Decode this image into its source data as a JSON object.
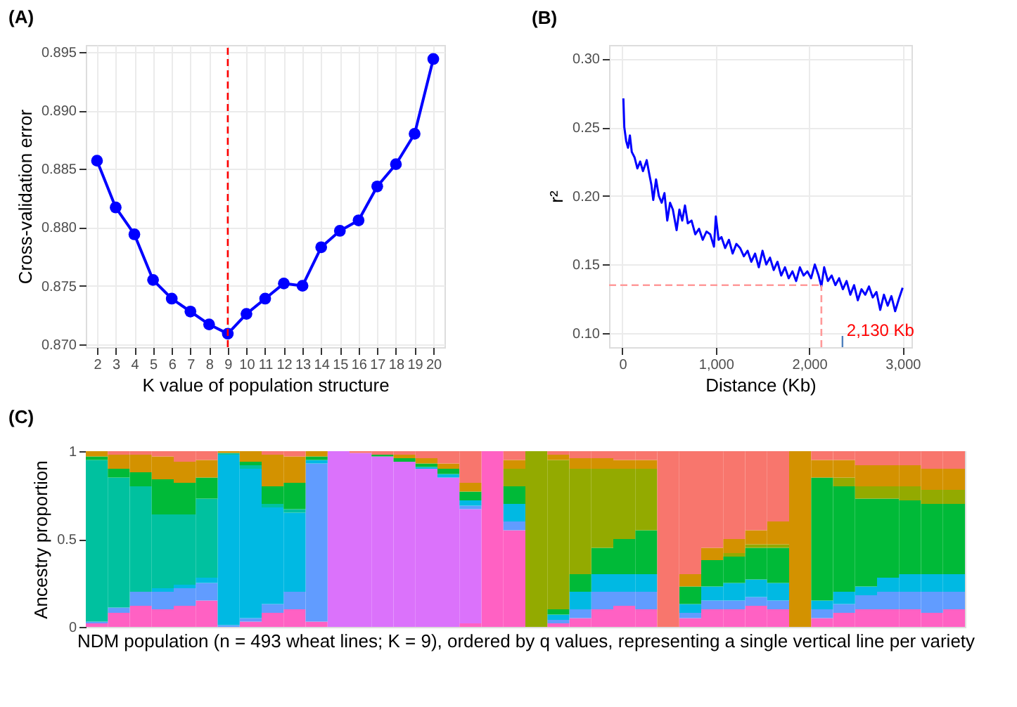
{
  "chart_data": [
    {
      "type": "line",
      "title": "(A)",
      "xlabel": "K value of population structure",
      "ylabel": "Cross-validation error",
      "x": [
        2,
        3,
        4,
        5,
        6,
        7,
        8,
        9,
        10,
        11,
        12,
        13,
        14,
        15,
        16,
        17,
        18,
        19,
        20
      ],
      "series": [
        {
          "color": "#0000ff",
          "values": [
            0.8857,
            0.8817,
            0.8794,
            0.8755,
            0.8739,
            0.8728,
            0.8717,
            0.8709,
            0.8726,
            0.8739,
            0.8752,
            0.875,
            0.8783,
            0.8797,
            0.8806,
            0.8835,
            0.8854,
            0.888,
            0.8944
          ]
        }
      ],
      "xlim": [
        1.4,
        20.6
      ],
      "xticks": [
        2,
        3,
        4,
        5,
        6,
        7,
        8,
        9,
        10,
        11,
        12,
        13,
        14,
        15,
        16,
        17,
        18,
        19,
        20
      ],
      "ylim": [
        0.86975,
        0.8956
      ],
      "yticks": [
        {
          "value": 0.87,
          "label": "0.870"
        },
        {
          "value": 0.875,
          "label": "0.875"
        },
        {
          "value": 0.88,
          "label": "0.880"
        },
        {
          "value": 0.885,
          "label": "0.885"
        },
        {
          "value": 0.89,
          "label": "0.890"
        },
        {
          "value": 0.895,
          "label": "0.895"
        }
      ],
      "grid": true,
      "marker": "circle",
      "line_style": "solid",
      "ref_lines": [
        {
          "axis": "x",
          "value": 9,
          "color": "#ff0000",
          "line_style": "dashed"
        }
      ]
    },
    {
      "type": "line",
      "title": "(B)",
      "xlabel": "Distance (Kb)",
      "ylabel": "r²",
      "x": [
        10,
        20,
        40,
        60,
        80,
        100,
        130,
        160,
        190,
        220,
        260,
        290,
        310,
        330,
        360,
        390,
        420,
        450,
        480,
        510,
        540,
        580,
        610,
        640,
        670,
        700,
        740,
        780,
        820,
        860,
        900,
        940,
        980,
        1000,
        1030,
        1060,
        1100,
        1140,
        1180,
        1220,
        1260,
        1300,
        1340,
        1380,
        1420,
        1460,
        1500,
        1540,
        1580,
        1620,
        1660,
        1700,
        1740,
        1780,
        1820,
        1860,
        1900,
        1940,
        1980,
        2020,
        2060,
        2100,
        2130,
        2160,
        2200,
        2240,
        2280,
        2320,
        2360,
        2400,
        2440,
        2480,
        2520,
        2560,
        2600,
        2640,
        2680,
        2720,
        2760,
        2800,
        2840,
        2880,
        2920,
        2960,
        3000
      ],
      "series": [
        {
          "color": "#0000ff",
          "values": [
            0.271,
            0.25,
            0.24,
            0.235,
            0.244,
            0.232,
            0.228,
            0.22,
            0.225,
            0.218,
            0.226,
            0.215,
            0.208,
            0.197,
            0.212,
            0.2,
            0.195,
            0.202,
            0.182,
            0.195,
            0.19,
            0.175,
            0.19,
            0.182,
            0.193,
            0.18,
            0.182,
            0.172,
            0.176,
            0.168,
            0.174,
            0.172,
            0.163,
            0.185,
            0.168,
            0.17,
            0.162,
            0.168,
            0.158,
            0.165,
            0.162,
            0.156,
            0.16,
            0.152,
            0.158,
            0.148,
            0.16,
            0.15,
            0.155,
            0.146,
            0.152,
            0.142,
            0.148,
            0.14,
            0.145,
            0.138,
            0.148,
            0.142,
            0.145,
            0.14,
            0.15,
            0.142,
            0.134,
            0.148,
            0.138,
            0.142,
            0.135,
            0.14,
            0.132,
            0.138,
            0.128,
            0.135,
            0.124,
            0.132,
            0.128,
            0.134,
            0.126,
            0.13,
            0.117,
            0.128,
            0.12,
            0.127,
            0.116,
            0.125,
            0.133
          ]
        }
      ],
      "xlim": [
        -143,
        3095
      ],
      "xticks": [
        {
          "value": 0,
          "label": "0"
        },
        {
          "value": 1000,
          "label": "1,000"
        },
        {
          "value": 2000,
          "label": "2,000"
        },
        {
          "value": 3000,
          "label": "3,000"
        }
      ],
      "ylim": [
        0.0898,
        0.3099
      ],
      "yticks": [
        {
          "value": 0.1,
          "label": "0.10"
        },
        {
          "value": 0.15,
          "label": "0.15"
        },
        {
          "value": 0.2,
          "label": "0.20"
        },
        {
          "value": 0.25,
          "label": "0.25"
        },
        {
          "value": 0.3,
          "label": "0.30"
        }
      ],
      "grid": true,
      "line_style": "solid",
      "ref_lines": [
        {
          "axis": "y",
          "value": 0.135,
          "color": "#ff9999",
          "line_style": "dashed"
        },
        {
          "axis": "x",
          "value": 2130,
          "label": "2,130 Kb",
          "color": "#ff9999",
          "line_style": "dashed"
        }
      ]
    },
    {
      "type": "bar",
      "stacked": true,
      "title": "(C)",
      "xlabel": "NDM population (n = 493 wheat lines; K = 9), ordered by q values, representing a single vertical line per variety",
      "ylabel": "Ancestry proportion",
      "categories": [
        null,
        null,
        null,
        null,
        null,
        null,
        null,
        null,
        null,
        null,
        null,
        null,
        null,
        null,
        null,
        null,
        null,
        null,
        null,
        null,
        null,
        null,
        null,
        null,
        null,
        null,
        null,
        null,
        null,
        null,
        null,
        null,
        null,
        null,
        null,
        null,
        null,
        null,
        null,
        null
      ],
      "ylim": [
        0,
        1
      ],
      "yticks": [
        0,
        0.5,
        1
      ],
      "tick_labels": "y",
      "series": [
        {
          "color": "#ff61c3",
          "values": [
            0.02,
            0.08,
            0.12,
            0.1,
            0.12,
            0.15,
            0,
            0.03,
            0.08,
            0.1,
            0.03,
            0,
            0,
            0,
            0,
            0,
            0,
            0.02,
            1,
            0.55,
            0,
            0.02,
            0.05,
            0.1,
            0.12,
            0.1,
            0,
            0.05,
            0.1,
            0.1,
            0.12,
            0.1,
            0,
            0.05,
            0.08,
            0.1,
            0.1,
            0.1,
            0.08,
            0.1
          ]
        },
        {
          "color": "#db72fb",
          "values": [
            0,
            0,
            0,
            0,
            0,
            0,
            0,
            0,
            0,
            0,
            0,
            1,
            0.99,
            0.97,
            0.94,
            0.9,
            0.85,
            0.65,
            0,
            0,
            0,
            0,
            0,
            0,
            0,
            0,
            0,
            0,
            0,
            0,
            0,
            0,
            0,
            0,
            0,
            0,
            0,
            0,
            0,
            0
          ]
        },
        {
          "color": "#619cff",
          "values": [
            0.01,
            0.03,
            0.08,
            0.1,
            0.1,
            0.1,
            0.01,
            0.02,
            0.05,
            0.1,
            0.9,
            0,
            0,
            0,
            0,
            0,
            0,
            0.02,
            0,
            0.05,
            0,
            0.02,
            0.05,
            0.1,
            0.08,
            0.1,
            0,
            0.03,
            0.05,
            0.05,
            0.05,
            0.05,
            0,
            0.05,
            0.05,
            0.08,
            0.1,
            0.1,
            0.12,
            0.1
          ]
        },
        {
          "color": "#00b9e3",
          "values": [
            0,
            0,
            0,
            0.02,
            0.02,
            0.03,
            0.97,
            0.85,
            0.55,
            0.45,
            0.02,
            0,
            0,
            0,
            0,
            0.01,
            0.02,
            0.03,
            0,
            0.1,
            0,
            0.03,
            0.1,
            0.1,
            0.1,
            0.1,
            0,
            0.05,
            0.08,
            0.1,
            0.1,
            0.1,
            0,
            0.05,
            0.07,
            0.05,
            0.08,
            0.1,
            0.1,
            0.1
          ]
        },
        {
          "color": "#00c19f",
          "values": [
            0.92,
            0.74,
            0.6,
            0.42,
            0.4,
            0.45,
            0.01,
            0.02,
            0.02,
            0.02,
            0,
            0,
            0,
            0,
            0,
            0,
            0,
            0,
            0,
            0,
            0,
            0,
            0,
            0,
            0,
            0,
            0,
            0,
            0,
            0,
            0,
            0,
            0,
            0,
            0,
            0,
            0,
            0,
            0,
            0
          ]
        },
        {
          "color": "#00ba38",
          "values": [
            0.02,
            0.05,
            0.08,
            0.2,
            0.18,
            0.12,
            0,
            0.02,
            0.1,
            0.15,
            0.02,
            0,
            0,
            0.01,
            0.02,
            0.02,
            0.03,
            0.05,
            0,
            0.1,
            0,
            0.03,
            0.1,
            0.15,
            0.2,
            0.25,
            0,
            0.1,
            0.15,
            0.15,
            0.18,
            0.2,
            0,
            0.7,
            0.6,
            0.5,
            0.45,
            0.42,
            0.4,
            0.4
          ]
        },
        {
          "color": "#93aa00",
          "values": [
            0,
            0,
            0,
            0,
            0,
            0,
            0,
            0,
            0,
            0,
            0,
            0,
            0,
            0,
            0,
            0,
            0,
            0,
            0,
            0.1,
            1,
            0.85,
            0.6,
            0.45,
            0.4,
            0.35,
            0,
            0,
            0,
            0.02,
            0.02,
            0.02,
            0,
            0,
            0.05,
            0.07,
            0.07,
            0.08,
            0.08,
            0.08
          ]
        },
        {
          "color": "#d39200",
          "values": [
            0.03,
            0.08,
            0.1,
            0.13,
            0.12,
            0.1,
            0.01,
            0.06,
            0.18,
            0.15,
            0.03,
            0,
            0,
            0,
            0.02,
            0.03,
            0.03,
            0.05,
            0,
            0.05,
            0,
            0.03,
            0.06,
            0.06,
            0.05,
            0.05,
            0,
            0.07,
            0.07,
            0.08,
            0.08,
            0.13,
            1,
            0.1,
            0.1,
            0.12,
            0.12,
            0.12,
            0.12,
            0.12
          ]
        },
        {
          "color": "#f8766d",
          "values": [
            0,
            0.02,
            0.02,
            0.03,
            0.06,
            0.05,
            0,
            0,
            0.02,
            0.03,
            0,
            0,
            0.01,
            0.02,
            0.02,
            0.04,
            0.07,
            0.18,
            0,
            0.05,
            0,
            0.02,
            0.04,
            0.04,
            0.05,
            0.05,
            1,
            0.7,
            0.55,
            0.5,
            0.45,
            0.4,
            0,
            0.05,
            0.05,
            0.08,
            0.08,
            0.08,
            0.1,
            0.1
          ]
        }
      ]
    }
  ]
}
